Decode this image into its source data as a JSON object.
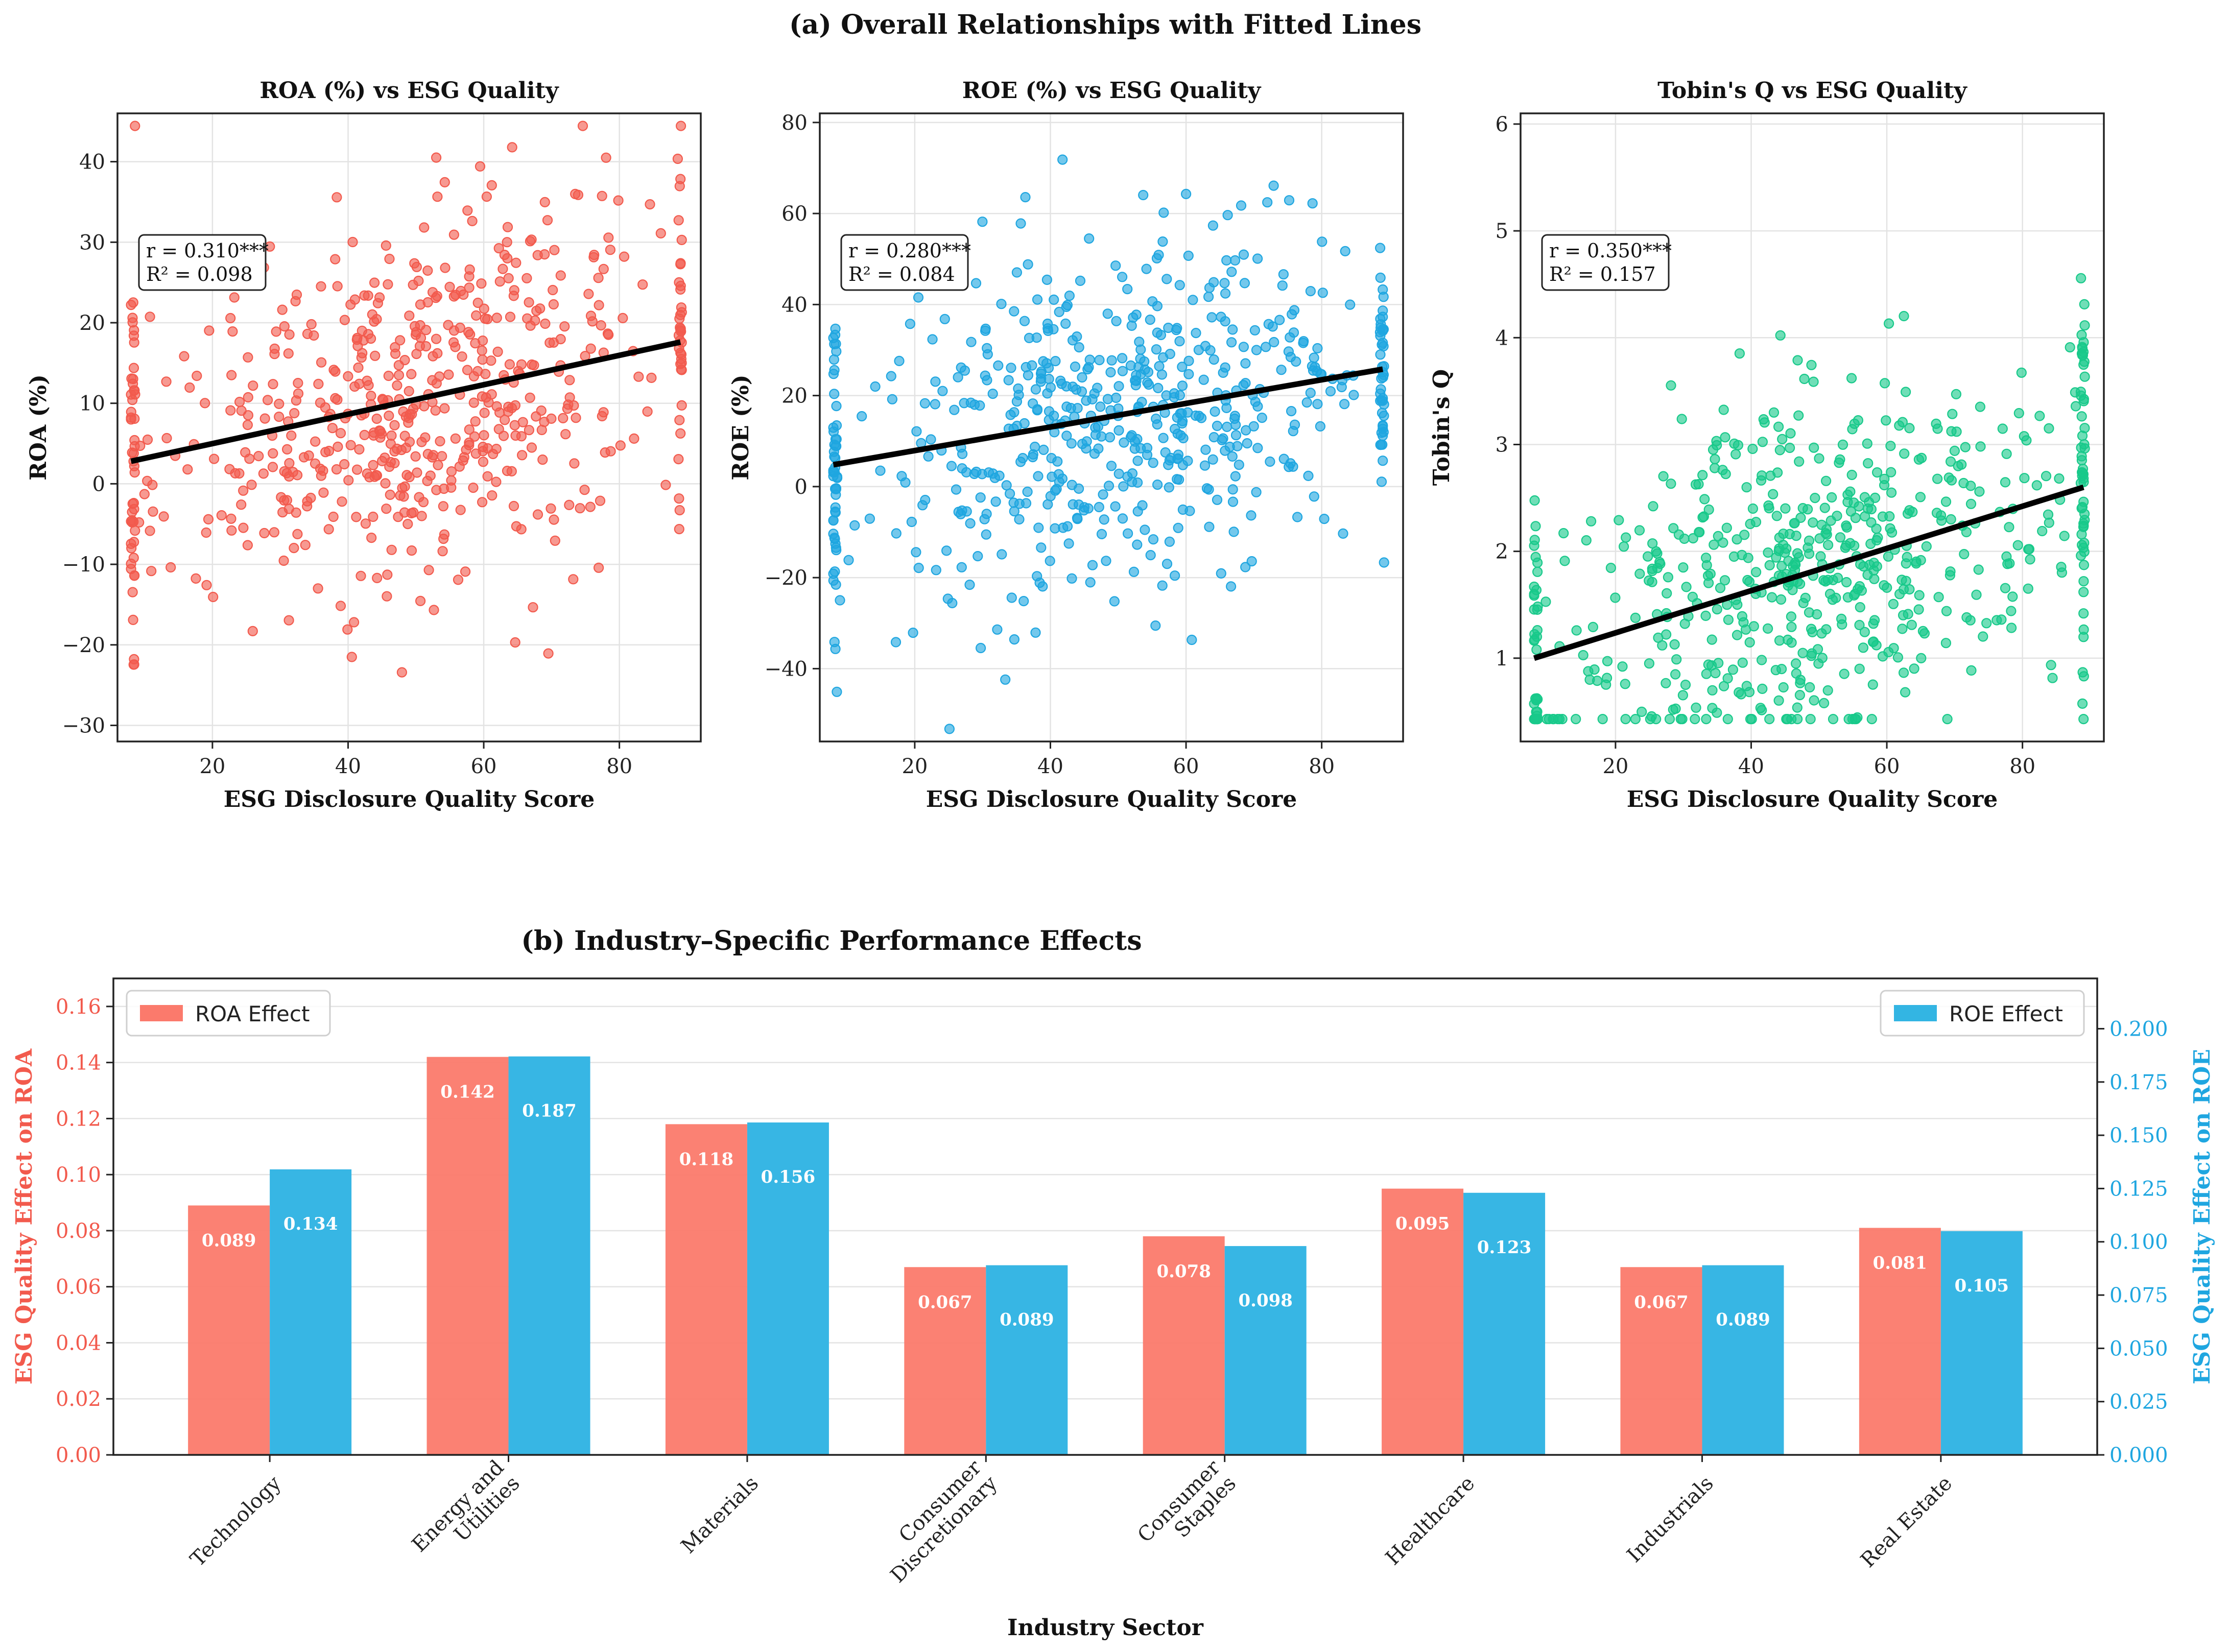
{
  "figure": {
    "title_a": "(a) Overall Relationships with Fitted Lines",
    "title_b": "(b) Industry–Specific Performance Effects"
  },
  "chart_data": [
    {
      "type": "scatter",
      "title": "ROA (%) vs ESG Quality",
      "xlabel": "ESG Disclosure Quality Score",
      "ylabel": "ROA (%)",
      "color": "#f25a4d",
      "xlim": [
        6,
        92
      ],
      "ylim": [
        -32,
        46
      ],
      "xticks": [
        20,
        40,
        60,
        80
      ],
      "yticks": [
        -30,
        -20,
        -10,
        0,
        10,
        20,
        30,
        40
      ],
      "fit": {
        "x": [
          8,
          89
        ],
        "y": [
          2.8,
          17.6
        ]
      },
      "stats": {
        "r": "r = 0.310***",
        "r2": "R² = 0.098"
      },
      "seed": 11,
      "approx_points": 620,
      "slope": 0.183,
      "intercept": 1.3,
      "noise_sd": 11.5
    },
    {
      "type": "scatter",
      "title": "ROE (%) vs ESG Quality",
      "xlabel": "ESG Disclosure Quality Score",
      "ylabel": "ROE (%)",
      "color": "#1fa6e0",
      "xlim": [
        6,
        92
      ],
      "ylim": [
        -56,
        82
      ],
      "xticks": [
        20,
        40,
        60,
        80
      ],
      "yticks": [
        -40,
        -20,
        0,
        20,
        40,
        60,
        80
      ],
      "fit": {
        "x": [
          8,
          89
        ],
        "y": [
          4.8,
          25.8
        ]
      },
      "stats": {
        "r": "r = 0.280***",
        "r2": "R² = 0.084"
      },
      "seed": 23,
      "approx_points": 620,
      "slope": 0.259,
      "intercept": 2.7,
      "noise_sd": 18
    },
    {
      "type": "scatter",
      "title": "Tobin's Q vs ESG Quality",
      "xlabel": "ESG Disclosure Quality Score",
      "ylabel": "Tobin's Q",
      "color": "#18c98a",
      "xlim": [
        6,
        92
      ],
      "ylim": [
        0.22,
        6.1
      ],
      "xticks": [
        20,
        40,
        60,
        80
      ],
      "yticks": [
        1,
        2,
        3,
        4,
        5,
        6
      ],
      "fit": {
        "x": [
          8,
          89
        ],
        "y": [
          1.0,
          2.6
        ]
      },
      "stats": {
        "r": "r = 0.350***",
        "r2": "R² = 0.157"
      },
      "seed": 37,
      "approx_points": 620,
      "slope": 0.0198,
      "intercept": 0.84,
      "noise_sd": 0.85,
      "floor": 0.43
    },
    {
      "type": "bar",
      "xlabel": "Industry Sector",
      "ylabel_left": "ESG Quality Effect on ROA",
      "ylabel_right": "ESG Quality Effect on ROE",
      "categories": [
        "Technology",
        "Energy and\nUtilities",
        "Materials",
        "Consumer\nDiscretionary",
        "Consumer\nStaples",
        "Healthcare",
        "Industrials",
        "Real Estate"
      ],
      "series": [
        {
          "name": "ROA Effect",
          "axis": "left",
          "color": "#fb7a6c",
          "values": [
            0.089,
            0.142,
            0.118,
            0.067,
            0.078,
            0.095,
            0.067,
            0.081
          ],
          "labels": [
            "0.089",
            "0.142",
            "0.118",
            "0.067",
            "0.078",
            "0.095",
            "0.067",
            "0.081"
          ]
        },
        {
          "name": "ROE Effect",
          "axis": "right",
          "color": "#33b5e3",
          "values": [
            0.134,
            0.187,
            0.156,
            0.089,
            0.098,
            0.123,
            0.089,
            0.105
          ],
          "labels": [
            "0.134",
            "0.187",
            "0.156",
            "0.089",
            "0.098",
            "0.123",
            "0.089",
            "0.105"
          ]
        }
      ],
      "ylim_left": [
        0,
        0.17
      ],
      "ylim_right": [
        0,
        0.2236
      ],
      "yticks_left": [
        "0.00",
        "0.02",
        "0.04",
        "0.06",
        "0.08",
        "0.10",
        "0.12",
        "0.14",
        "0.16"
      ],
      "yticks_right": [
        "0.000",
        "0.025",
        "0.050",
        "0.075",
        "0.100",
        "0.125",
        "0.150",
        "0.175",
        "0.200"
      ],
      "left_axis_color": "#f25a4d",
      "right_axis_color": "#1fa6e0"
    }
  ]
}
